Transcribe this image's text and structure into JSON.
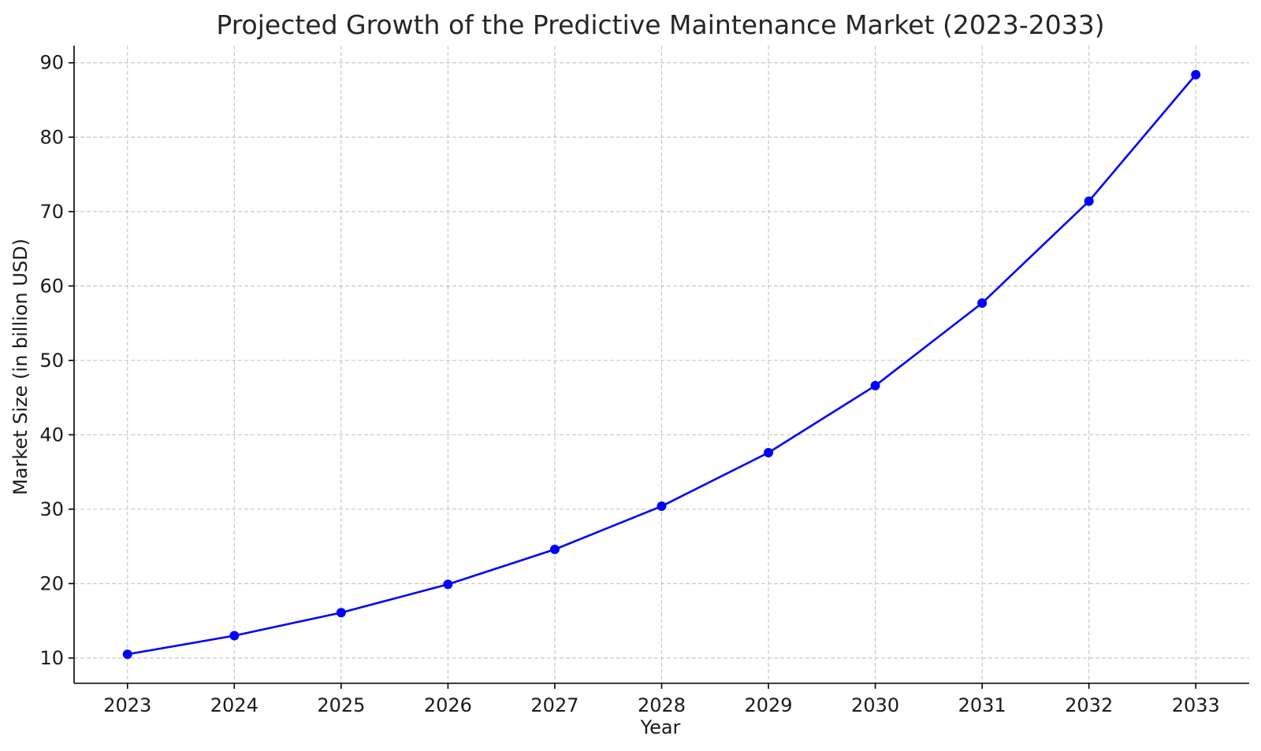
{
  "chart_data": {
    "type": "line",
    "title": "Projected Growth of the Predictive Maintenance Market (2023-2033)",
    "xlabel": "Year",
    "ylabel": "Market Size (in billion USD)",
    "x": [
      2023,
      2024,
      2025,
      2026,
      2027,
      2028,
      2029,
      2030,
      2031,
      2032,
      2033
    ],
    "x_tick_labels": [
      "2023",
      "2024",
      "2025",
      "2026",
      "2027",
      "2028",
      "2029",
      "2030",
      "2031",
      "2032",
      "2033"
    ],
    "series": [
      {
        "values": [
          10.5,
          13.0,
          16.1,
          19.9,
          24.6,
          30.4,
          37.6,
          46.6,
          57.7,
          71.4,
          88.4
        ],
        "color": "#0000ff",
        "marker": "circle"
      }
    ],
    "y_ticks": [
      10,
      20,
      30,
      40,
      50,
      60,
      70,
      80,
      90
    ],
    "xlim": [
      2022.5,
      2033.5
    ],
    "ylim": [
      6.6,
      92.3
    ],
    "grid": true,
    "grid_style": "dashed",
    "legend": "none"
  }
}
